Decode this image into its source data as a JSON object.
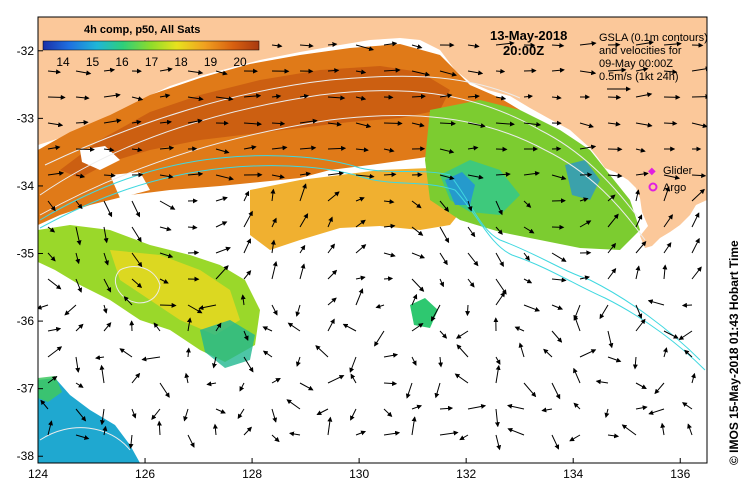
{
  "colorbar": {
    "title": "4h comp, p50, All Sats",
    "ticks": [
      "14",
      "15",
      "16",
      "17",
      "18",
      "19",
      "20"
    ],
    "colors": [
      "#1a2fa8",
      "#1f6fe0",
      "#1fb6d8",
      "#2ecf7a",
      "#8fdc2a",
      "#e8e21e",
      "#f0a020",
      "#d86010",
      "#a83a10"
    ]
  },
  "timestamp": {
    "date": "13-May-2018",
    "time": "20:00Z"
  },
  "gsla_note": {
    "line1": "GSLA (0.1m contours)",
    "line2": "and velocities for",
    "line3": "09-May 00:00Z",
    "line4": "0.5m/s (1kt 24h)"
  },
  "legend": {
    "glider": "Glider",
    "argo": "Argo",
    "glider_color": "#e020e0",
    "argo_color": "#e020e0"
  },
  "credit": "© IMOS 15-May-2018 01:43 Hobart Time",
  "axes": {
    "x_ticks": [
      "124",
      "126",
      "128",
      "130",
      "132",
      "134",
      "136"
    ],
    "y_ticks": [
      "-32",
      "-33",
      "-34",
      "-35",
      "-36",
      "-37",
      "-38"
    ],
    "lon_range": [
      124,
      136.5
    ],
    "lat_range": [
      -31.5,
      -38.1
    ]
  },
  "colors": {
    "land": "#fbc89a",
    "ocean": "#ffffff",
    "frame": "#000000",
    "contour": "#e8e8e8",
    "bathymetry": "#40d8e0"
  }
}
